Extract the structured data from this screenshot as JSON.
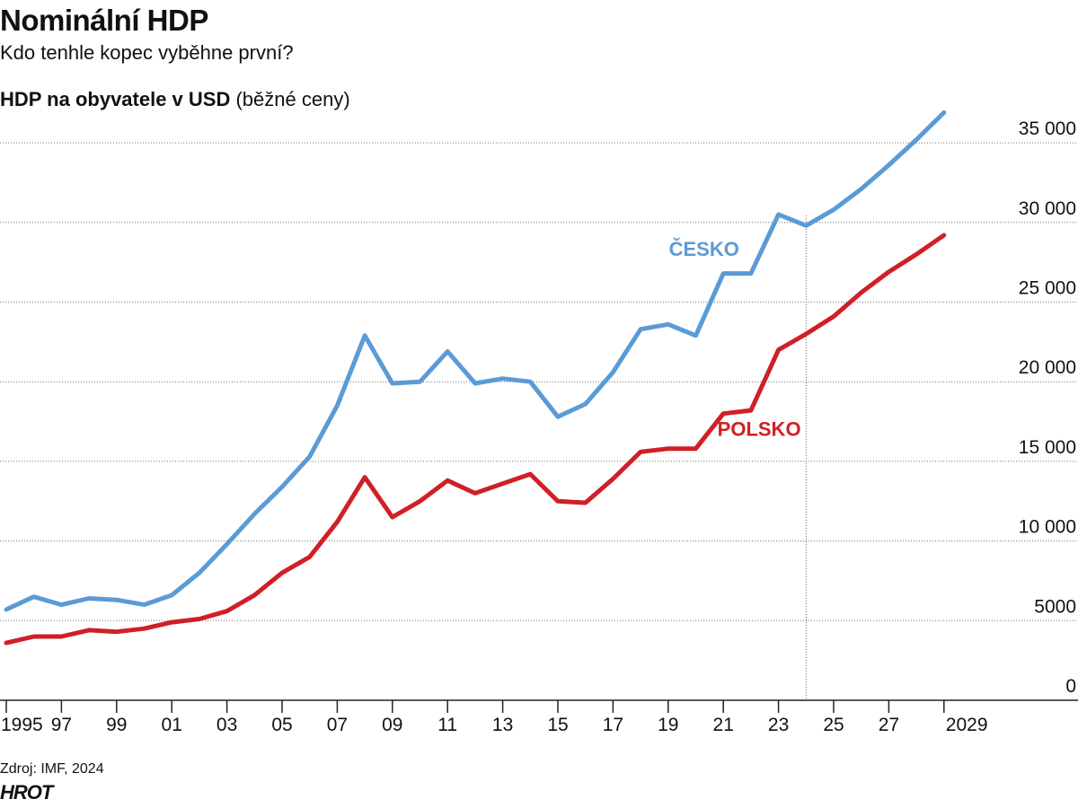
{
  "header": {
    "title": "Nominální HDP",
    "subtitle": "Kdo tenhle kopec vyběhne první?",
    "unit_bold": "HDP na obyvatele v USD",
    "unit_rest": " (běžné ceny)"
  },
  "footer": {
    "source": "Zdroj: IMF, 2024",
    "brand": "HROT"
  },
  "chart_data": {
    "type": "line",
    "ylim": [
      0,
      35000
    ],
    "y_ticks": [
      0,
      5000,
      10000,
      15000,
      20000,
      25000,
      30000,
      35000
    ],
    "y_tick_labels": [
      "0",
      "5000",
      "10 000",
      "15 000",
      "20 000",
      "25 000",
      "30 000",
      "35 000"
    ],
    "x_ticks": [
      1995,
      1997,
      1999,
      2001,
      2003,
      2005,
      2007,
      2009,
      2011,
      2013,
      2015,
      2017,
      2019,
      2021,
      2023,
      2025,
      2027,
      2029
    ],
    "x_tick_labels": [
      "1995",
      "97",
      "99",
      "01",
      "03",
      "05",
      "07",
      "09",
      "11",
      "13",
      "15",
      "17",
      "19",
      "21",
      "23",
      "25",
      "27",
      "2029"
    ],
    "forecast_start": 2024,
    "grid": true,
    "x": [
      1995,
      1996,
      1997,
      1998,
      1999,
      2000,
      2001,
      2002,
      2003,
      2004,
      2005,
      2006,
      2007,
      2008,
      2009,
      2010,
      2011,
      2012,
      2013,
      2014,
      2015,
      2016,
      2017,
      2018,
      2019,
      2020,
      2021,
      2022,
      2023,
      2024,
      2025,
      2026,
      2027,
      2028,
      2029
    ],
    "series": [
      {
        "name": "ČESKO",
        "color": "#5b9bd5",
        "values": [
          5700,
          6500,
          6000,
          6400,
          6300,
          6000,
          6600,
          8000,
          9800,
          11700,
          13400,
          15300,
          18500,
          22900,
          19900,
          20000,
          21900,
          19900,
          20200,
          20000,
          17800,
          18600,
          20600,
          23300,
          23600,
          22900,
          26800,
          26800,
          30500,
          29800,
          30800,
          32100,
          33600,
          35200,
          36900
        ]
      },
      {
        "name": "POLSKO",
        "color": "#d01f26",
        "values": [
          3600,
          4000,
          4000,
          4400,
          4300,
          4500,
          4900,
          5100,
          5600,
          6600,
          8000,
          9000,
          11200,
          14000,
          11500,
          12500,
          13800,
          13000,
          13600,
          14200,
          12500,
          12400,
          13900,
          15600,
          15800,
          15800,
          18000,
          18200,
          22000,
          23000,
          24100,
          25600,
          26900,
          28000,
          29200
        ]
      }
    ]
  }
}
